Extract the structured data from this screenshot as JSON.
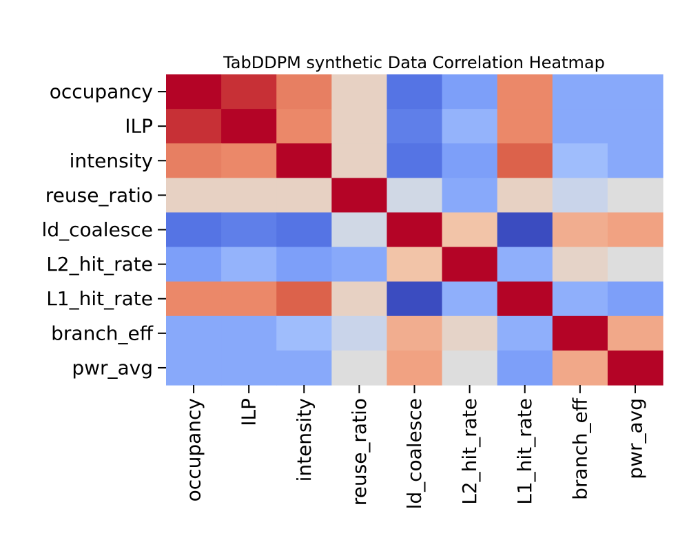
{
  "chart_data": {
    "type": "heatmap",
    "title": "TabDDPM synthetic Data Correlation Heatmap",
    "colormap": "coolwarm",
    "vmin": -0.6,
    "vmax": 1.0,
    "colorbar": false,
    "grid": false,
    "row_labels": [
      "occupancy",
      "ILP",
      "intensity",
      "reuse_ratio",
      "ld_coalesce",
      "L2_hit_rate",
      "L1_hit_rate",
      "branch_eff",
      "pwr_avg"
    ],
    "col_labels": [
      "occupancy",
      "ILP",
      "intensity",
      "reuse_ratio",
      "ld_coalesce",
      "L2_hit_rate",
      "L1_hit_rate",
      "branch_eff",
      "pwr_avg"
    ],
    "values": [
      [
        1.0,
        0.9,
        0.68,
        0.3,
        -0.4,
        -0.2,
        0.65,
        -0.15,
        -0.15
      ],
      [
        0.9,
        1.0,
        0.65,
        0.3,
        -0.35,
        -0.1,
        0.65,
        -0.15,
        -0.15
      ],
      [
        0.68,
        0.65,
        1.0,
        0.3,
        -0.4,
        -0.2,
        0.78,
        -0.05,
        -0.15
      ],
      [
        0.3,
        0.3,
        0.3,
        1.0,
        0.15,
        -0.15,
        0.3,
        0.12,
        0.2
      ],
      [
        -0.4,
        -0.35,
        -0.4,
        0.15,
        1.0,
        0.4,
        -0.6,
        0.5,
        0.55
      ],
      [
        -0.2,
        -0.1,
        -0.2,
        -0.15,
        0.4,
        1.0,
        -0.12,
        0.28,
        0.2
      ],
      [
        0.65,
        0.65,
        0.78,
        0.3,
        -0.6,
        -0.12,
        1.0,
        -0.12,
        -0.2
      ],
      [
        -0.15,
        -0.15,
        -0.05,
        0.12,
        0.5,
        0.28,
        -0.12,
        1.0,
        0.52
      ],
      [
        -0.15,
        -0.15,
        -0.15,
        0.2,
        0.55,
        0.2,
        -0.2,
        0.52,
        1.0
      ]
    ]
  }
}
